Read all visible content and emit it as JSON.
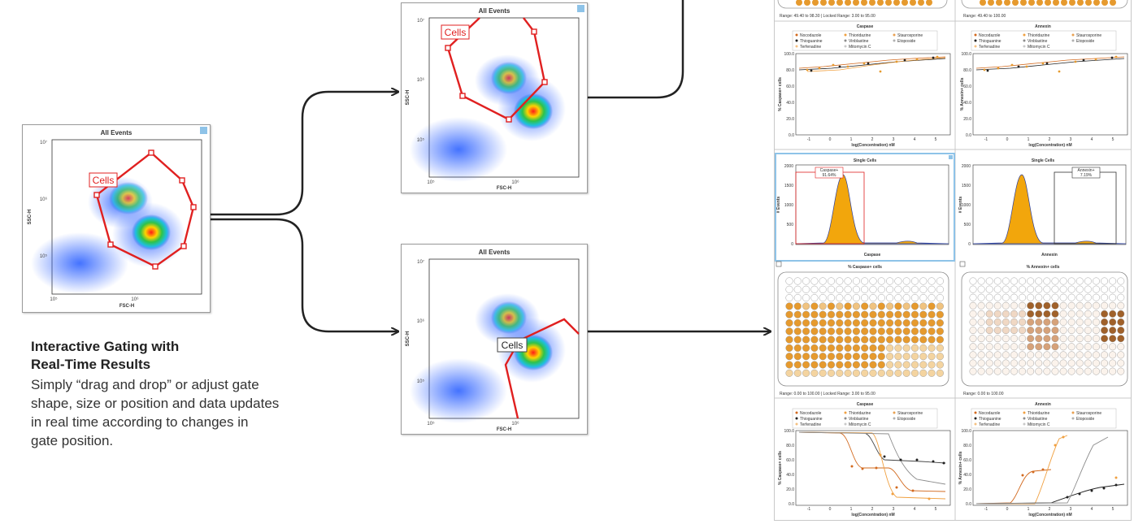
{
  "left_panel": {
    "title": "All Events",
    "gate_label": "Cells",
    "xlabel": "FSC-H",
    "ylabel": "SSC-H",
    "yticks": [
      "10⁷",
      "10⁶",
      "10⁵"
    ],
    "xticks": [
      "10⁵",
      "10⁶"
    ]
  },
  "mid_top_panel": {
    "title": "All Events",
    "gate_label": "Cells",
    "xlabel": "FSC-H",
    "ylabel": "SSC-H",
    "yticks": [
      "10⁷",
      "10⁶",
      "10⁵"
    ],
    "xticks": [
      "10⁵",
      "10⁶"
    ]
  },
  "mid_bottom_panel": {
    "title": "All Events",
    "gate_label": "Cells",
    "xlabel": "FSC-H",
    "ylabel": "SSC-H",
    "yticks": [
      "10⁷",
      "10⁶",
      "10⁵"
    ],
    "xticks": [
      "10⁵",
      "10⁶"
    ]
  },
  "description": {
    "heading_line1": "Interactive Gating with",
    "heading_line2": "Real-Time Results",
    "body_line1": "Simply “drag and drop” or adjust gate",
    "body_line2": "shape, size or position and data updates",
    "body_line3": "in real time according to changes in",
    "body_line4": "gate position."
  },
  "right_top": {
    "range_left": "Range: 49.40 to 98.30  |  Locked Range: 3.00 to 95.00",
    "range_right": "Range: 49.40 to 100.00",
    "chart_left_title": "Caspase",
    "chart_right_title": "Annexin",
    "ylabel_left": "% Caspase+ cells",
    "ylabel_right": "% Annexin+ cells",
    "xlabel": "log(Concentration) nM",
    "yticks": [
      "100.0",
      "80.0",
      "60.0",
      "40.0",
      "20.0",
      "0.0"
    ],
    "xticks": [
      "-1",
      "0",
      "1",
      "2",
      "3",
      "4",
      "5"
    ]
  },
  "legend": [
    {
      "name": "Nocodazole",
      "color": "#d2691e"
    },
    {
      "name": "Thioridazine",
      "color": "#f0a040"
    },
    {
      "name": "Staurosporine",
      "color": "#e8a050"
    },
    {
      "name": "Thioguanine",
      "color": "#222222"
    },
    {
      "name": "Vinblastine",
      "color": "#8c8c8c"
    },
    {
      "name": "Etoposide",
      "color": "#b0b0b0"
    },
    {
      "name": "Terfenadine",
      "color": "#f5c080"
    },
    {
      "name": "Mitomycin C",
      "color": "#c8c8c8"
    }
  ],
  "histograms": {
    "left_title": "Single Cells",
    "right_title": "Single Cells",
    "left_gate_name": "Caspase+",
    "left_gate_value": "91.64%",
    "right_gate_name": "Annexin+",
    "right_gate_value": "7.19%",
    "left_xlabel": "Caspase",
    "right_xlabel": "Annexin",
    "ylabel": "# Events",
    "yticks": [
      "2000",
      "1500",
      "1000",
      "500",
      "0"
    ]
  },
  "plates": {
    "left_title": "% Caspase+ cells",
    "right_title": "% Annexin+ cells",
    "range_left": "Range: 0.00 to 100.00  |  Locked Range: 3.00 to 95.00",
    "range_right": "Range: 0.00 to 100.00"
  },
  "right_bottom": {
    "chart_left_title": "Caspase",
    "chart_right_title": "Annexin",
    "ylabel_left": "% Caspase+ cells",
    "ylabel_right": "% Annexin+ cells",
    "xlabel": "log(Concentration) nM",
    "yticks": [
      "100.0",
      "80.0",
      "60.0",
      "40.0",
      "20.0",
      "0.0"
    ],
    "xticks": [
      "-1",
      "0",
      "1",
      "2",
      "3",
      "4",
      "5"
    ]
  },
  "colors": {
    "gate_red": "#e02020",
    "orange_well": "#e69a2e",
    "brown_well": "#a0612a",
    "connector": "#222222",
    "highlight_blue": "#8ec3e8"
  }
}
